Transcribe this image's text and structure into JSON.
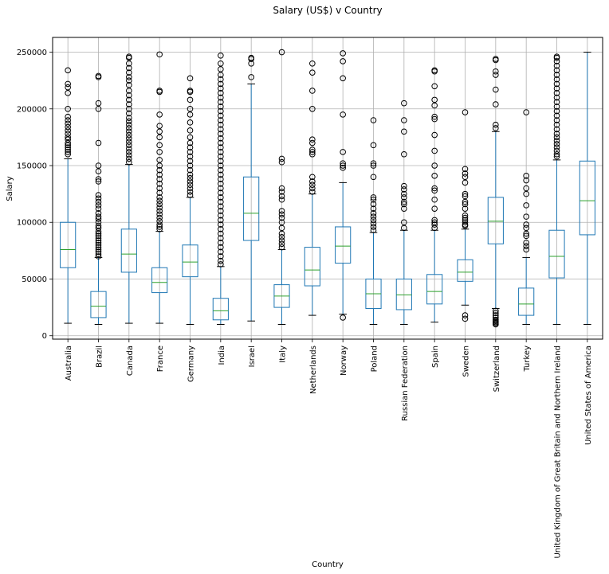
{
  "chart_data": {
    "type": "box",
    "title": "Salary (US$) v Country",
    "xlabel": "Country",
    "ylabel": "Salary",
    "ylim": [
      -3000,
      263000
    ],
    "yticks": [
      0,
      50000,
      100000,
      150000,
      200000,
      250000
    ],
    "grid": true,
    "colors": {
      "box": "#1f77b4",
      "median": "#2ca02c",
      "whisker": "#1f77b4",
      "cap": "#000000",
      "flier": "#000000",
      "grid": "#b0b0b0"
    },
    "categories": [
      "Australia",
      "Brazil",
      "Canada",
      "France",
      "Germany",
      "India",
      "Israel",
      "Italy",
      "Netherlands",
      "Norway",
      "Poland",
      "Russian Federation",
      "Spain",
      "Sweden",
      "Switzerland",
      "Turkey",
      "United Kingdom of Great Britain and Northern Ireland",
      "United States of America"
    ],
    "boxes": [
      {
        "whislo": 11000,
        "q1": 60000,
        "med": 76000,
        "q3": 100000,
        "whishi": 156000,
        "fliers": [
          234000,
          222000,
          219000,
          214000,
          200000,
          193000,
          190000,
          187000,
          184000,
          181000,
          178000,
          175000,
          173000,
          170000,
          168000,
          166000,
          164000,
          162000,
          160000
        ]
      },
      {
        "whislo": 10000,
        "q1": 16000,
        "med": 26000,
        "q3": 39000,
        "whishi": 69000,
        "fliers": [
          229000,
          228000,
          205000,
          200000,
          170000,
          150000,
          145000,
          138000,
          136000,
          124000,
          121000,
          118000,
          115000,
          112000,
          108000,
          105000,
          103000,
          100000,
          97000,
          95000,
          92000,
          90000,
          88000,
          86000,
          84000,
          82000,
          80000,
          78000,
          76000,
          74000,
          72000,
          70000
        ]
      },
      {
        "whislo": 11000,
        "q1": 56000,
        "med": 72000,
        "q3": 94000,
        "whishi": 151000,
        "fliers": [
          246000,
          245000,
          240000,
          236000,
          232000,
          228000,
          225000,
          221000,
          216000,
          212000,
          208000,
          204000,
          200000,
          196000,
          192000,
          189000,
          186000,
          183000,
          180000,
          177000,
          174000,
          171000,
          168000,
          165000,
          162000,
          159000,
          156000,
          153000
        ]
      },
      {
        "whislo": 11000,
        "q1": 38000,
        "med": 47000,
        "q3": 60000,
        "whishi": 92000,
        "fliers": [
          248000,
          216000,
          215000,
          195000,
          185000,
          180000,
          175000,
          168000,
          162000,
          155000,
          150000,
          146000,
          142000,
          138000,
          134000,
          130000,
          126000,
          122000,
          119000,
          116000,
          113000,
          110000,
          107000,
          104000,
          101000,
          98000,
          96000,
          94000
        ]
      },
      {
        "whislo": 10000,
        "q1": 52000,
        "med": 65000,
        "q3": 80000,
        "whishi": 122000,
        "fliers": [
          227000,
          216000,
          215000,
          208000,
          200000,
          195000,
          188000,
          181000,
          175000,
          170000,
          166000,
          162000,
          158000,
          154000,
          150000,
          146000,
          142000,
          139000,
          136000,
          133000,
          130000,
          127000,
          124000
        ]
      },
      {
        "whislo": 10000,
        "q1": 14000,
        "med": 22000,
        "q3": 33000,
        "whishi": 61000,
        "fliers": [
          247000,
          240000,
          235000,
          230000,
          226000,
          222000,
          218000,
          214000,
          210000,
          206000,
          202000,
          198000,
          194000,
          190000,
          186000,
          182000,
          178000,
          174000,
          170000,
          166000,
          162000,
          158000,
          154000,
          150000,
          146000,
          142000,
          138000,
          134000,
          130000,
          126000,
          122000,
          118000,
          114000,
          110000,
          106000,
          102000,
          98000,
          94000,
          90000,
          86000,
          82000,
          78000,
          74000,
          70000,
          66000,
          63000
        ]
      },
      {
        "whislo": 13000,
        "q1": 84000,
        "med": 108000,
        "q3": 140000,
        "whishi": 222000,
        "fliers": [
          245000,
          244000,
          240000,
          228000
        ]
      },
      {
        "whislo": 10000,
        "q1": 25000,
        "med": 35000,
        "q3": 45000,
        "whishi": 76000,
        "fliers": [
          250000,
          156000,
          153000,
          130000,
          127000,
          123000,
          120000,
          110000,
          107000,
          104000,
          100000,
          95000,
          90000,
          87000,
          84000,
          81000,
          78000
        ]
      },
      {
        "whislo": 18000,
        "q1": 44000,
        "med": 58000,
        "q3": 78000,
        "whishi": 125000,
        "fliers": [
          240000,
          232000,
          216000,
          200000,
          173000,
          170000,
          164000,
          162000,
          160000,
          140000,
          136000,
          133000,
          130000,
          127000
        ]
      },
      {
        "whislo": 19000,
        "q1": 64000,
        "med": 79000,
        "q3": 96000,
        "whishi": 135000,
        "fliers": [
          249000,
          242000,
          227000,
          195000,
          162000,
          152000,
          150000,
          148000,
          16000
        ]
      },
      {
        "whislo": 10000,
        "q1": 24000,
        "med": 37000,
        "q3": 50000,
        "whishi": 91000,
        "fliers": [
          190000,
          168000,
          152000,
          150000,
          140000,
          122000,
          120000,
          116000,
          112000,
          108000,
          105000,
          102000,
          99000,
          96000,
          93000
        ]
      },
      {
        "whislo": 10000,
        "q1": 23000,
        "med": 36000,
        "q3": 50000,
        "whishi": 93000,
        "fliers": [
          205000,
          190000,
          180000,
          160000,
          132000,
          129000,
          125000,
          122000,
          118000,
          116000,
          112000,
          100000,
          95000
        ]
      },
      {
        "whislo": 12000,
        "q1": 28000,
        "med": 39000,
        "q3": 54000,
        "whishi": 93000,
        "fliers": [
          234000,
          233000,
          220000,
          208000,
          203000,
          193000,
          191000,
          177000,
          163000,
          150000,
          141000,
          130000,
          128000,
          120000,
          112000,
          102000,
          100000,
          98000,
          95000
        ]
      },
      {
        "whislo": 27000,
        "q1": 48000,
        "med": 56000,
        "q3": 67000,
        "whishi": 94000,
        "fliers": [
          197000,
          147000,
          143000,
          140000,
          135000,
          125000,
          123000,
          118000,
          116000,
          112000,
          106000,
          104000,
          102000,
          100000,
          98000,
          97000,
          18000,
          15000
        ]
      },
      {
        "whislo": 24000,
        "q1": 81000,
        "med": 101000,
        "q3": 122000,
        "whishi": 180000,
        "fliers": [
          244000,
          243000,
          233000,
          230000,
          217000,
          204000,
          186000,
          183000,
          22000,
          20000,
          18000,
          16000,
          14000,
          13000,
          12000,
          11000,
          10000
        ]
      },
      {
        "whislo": 10000,
        "q1": 18000,
        "med": 28000,
        "q3": 42000,
        "whishi": 69000,
        "fliers": [
          197000,
          141000,
          137000,
          130000,
          125000,
          115000,
          105000,
          98000,
          95000,
          90000,
          88000,
          82000,
          79000,
          76000
        ]
      },
      {
        "whislo": 10000,
        "q1": 51000,
        "med": 70000,
        "q3": 93000,
        "whishi": 155000,
        "fliers": [
          246000,
          245000,
          242000,
          238000,
          234000,
          230000,
          226000,
          222000,
          218000,
          214000,
          210000,
          206000,
          202000,
          198000,
          194000,
          190000,
          186000,
          182000,
          178000,
          175000,
          172000,
          169000,
          166000,
          163000,
          160000,
          158000
        ]
      },
      {
        "whislo": 10000,
        "q1": 89000,
        "med": 119000,
        "q3": 154000,
        "whishi": 250000,
        "fliers": []
      }
    ]
  }
}
